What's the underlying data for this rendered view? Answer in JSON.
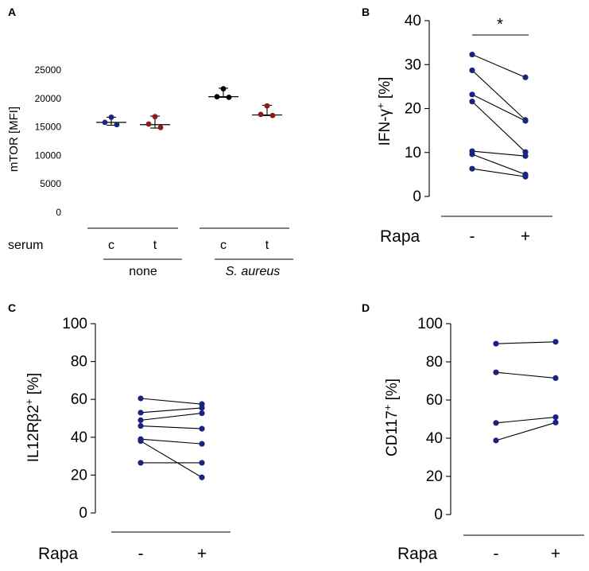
{
  "colors": {
    "blue": "#1a237e",
    "red": "#8b1a1a",
    "axis": "#000000"
  },
  "chart_data": [
    {
      "panel": "A",
      "type": "scatter",
      "ylabel": "mTOR [MFI]",
      "ylim": [
        0,
        25000
      ],
      "yticks": [
        0,
        5000,
        10000,
        15000,
        20000,
        25000
      ],
      "row_label": "serum",
      "groups": [
        {
          "serum": "c",
          "condition": "none",
          "color": "blue",
          "values": [
            16700,
            15800,
            15400
          ],
          "median": 15800,
          "range": [
            15300,
            16700
          ]
        },
        {
          "serum": "t",
          "condition": "none",
          "color": "red",
          "values": [
            16800,
            15500,
            14900
          ],
          "median": 15400,
          "range": [
            14800,
            16900
          ]
        },
        {
          "serum": "c",
          "condition": "S. aureus",
          "color": "black",
          "values": [
            21700,
            20300,
            20200
          ],
          "median": 20300,
          "range": [
            20200,
            21800
          ]
        },
        {
          "serum": "t",
          "condition": "S. aureus",
          "color": "red",
          "values": [
            18700,
            17200,
            17000
          ],
          "median": 17100,
          "range": [
            17000,
            18800
          ]
        }
      ],
      "condition_labels": [
        "none",
        "S. aureus"
      ]
    },
    {
      "panel": "B",
      "type": "paired",
      "ylabel": "IFN-γ",
      "ylabel_sup": "+",
      "ylabel_suffix": " [%]",
      "ylim": [
        0,
        40
      ],
      "yticks": [
        0,
        10,
        20,
        30,
        40
      ],
      "xlabel": "Rapa",
      "categories": [
        "-",
        "+"
      ],
      "significance": "*",
      "pairs": [
        [
          32.3,
          27.1
        ],
        [
          28.7,
          17.4
        ],
        [
          23.2,
          17.2
        ],
        [
          21.6,
          10.1
        ],
        [
          10.3,
          9.2
        ],
        [
          9.6,
          5.0
        ],
        [
          6.3,
          4.5
        ]
      ]
    },
    {
      "panel": "C",
      "type": "paired",
      "ylabel": "IL12Rβ2",
      "ylabel_sup": "+",
      "ylabel_suffix": " [%]",
      "ylim": [
        0,
        100
      ],
      "yticks": [
        0,
        20,
        40,
        60,
        80,
        100
      ],
      "xlabel": "Rapa",
      "categories": [
        "-",
        "+"
      ],
      "pairs": [
        [
          60.5,
          57.5
        ],
        [
          53.0,
          55.5
        ],
        [
          49.0,
          52.7
        ],
        [
          46.0,
          44.5
        ],
        [
          39.0,
          36.5
        ],
        [
          38.0,
          18.8
        ],
        [
          26.5,
          26.5
        ]
      ]
    },
    {
      "panel": "D",
      "type": "paired",
      "ylabel": "CD117",
      "ylabel_sup": "+",
      "ylabel_suffix": " [%]",
      "ylim": [
        0,
        100
      ],
      "yticks": [
        0,
        20,
        40,
        60,
        80,
        100
      ],
      "xlabel": "Rapa",
      "categories": [
        "-",
        "+"
      ],
      "pairs": [
        [
          89.5,
          90.5
        ],
        [
          74.5,
          71.5
        ],
        [
          48.0,
          51.0
        ],
        [
          38.8,
          48.2
        ]
      ]
    }
  ]
}
